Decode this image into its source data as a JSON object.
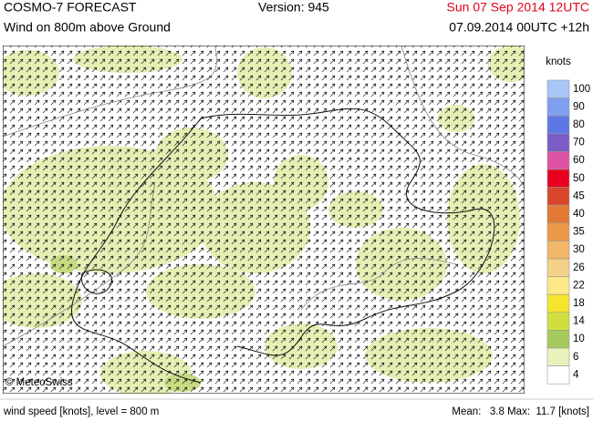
{
  "header": {
    "title": "COSMO-7 FORECAST",
    "subtitle": "Wind on 800m above Ground",
    "version": "Version: 945",
    "valid_time": "Sun 07 Sep 2014 12UTC",
    "run_time": "07.09.2014 00UTC +12h"
  },
  "map": {
    "copyright": "© MeteoSwiss"
  },
  "legend": {
    "title": "knots",
    "levels": [
      {
        "value": 100,
        "color": "#a8c6f6"
      },
      {
        "value": 90,
        "color": "#7f9ff0"
      },
      {
        "value": 80,
        "color": "#5d78e4"
      },
      {
        "value": 70,
        "color": "#7a5cc4"
      },
      {
        "value": 60,
        "color": "#de52a4"
      },
      {
        "value": 50,
        "color": "#e8001e"
      },
      {
        "value": 45,
        "color": "#d9462c"
      },
      {
        "value": 40,
        "color": "#e27a36"
      },
      {
        "value": 35,
        "color": "#eb9a48"
      },
      {
        "value": 30,
        "color": "#f1b668"
      },
      {
        "value": 26,
        "color": "#f5d088"
      },
      {
        "value": 22,
        "color": "#fde98a"
      },
      {
        "value": 18,
        "color": "#f6e52c"
      },
      {
        "value": 14,
        "color": "#cfe03e"
      },
      {
        "value": 10,
        "color": "#a6c95e"
      },
      {
        "value": 6,
        "color": "#e8f2bc"
      },
      {
        "value": 4,
        "color": "#ffffff"
      }
    ]
  },
  "footer": {
    "left": "wind speed [knots], level = 800 m",
    "right": "Mean:   3.8 Max:  11.7 [knots]"
  }
}
